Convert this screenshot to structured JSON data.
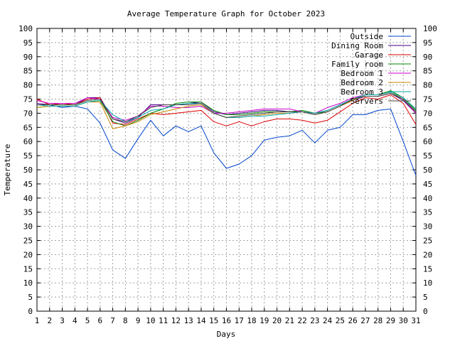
{
  "chart_data": {
    "type": "line",
    "title": "Average Temperature Graph for October 2023",
    "xlabel": "Days",
    "ylabel": "Temperature",
    "xlim": [
      1,
      31
    ],
    "ylim": [
      0,
      100
    ],
    "x_ticks": [
      1,
      2,
      3,
      4,
      5,
      6,
      7,
      8,
      9,
      10,
      11,
      12,
      13,
      14,
      15,
      16,
      17,
      18,
      19,
      20,
      21,
      22,
      23,
      24,
      25,
      26,
      27,
      28,
      29,
      30,
      31
    ],
    "y_ticks": [
      0,
      5,
      10,
      15,
      20,
      25,
      30,
      35,
      40,
      45,
      50,
      55,
      60,
      65,
      70,
      75,
      80,
      85,
      90,
      95,
      100
    ],
    "grid": true,
    "legend_position": "top-right",
    "x": [
      1,
      2,
      3,
      4,
      5,
      6,
      7,
      8,
      9,
      10,
      11,
      12,
      13,
      14,
      15,
      16,
      17,
      18,
      19,
      20,
      21,
      22,
      23,
      24,
      25,
      26,
      27,
      28,
      29,
      30,
      31
    ],
    "series": [
      {
        "name": "Outside",
        "color": "#0044cc",
        "values": [
          73.0,
          73.0,
          72.0,
          72.5,
          71.5,
          66.5,
          57.0,
          54.0,
          61.0,
          67.5,
          62.0,
          65.5,
          63.5,
          65.5,
          56.0,
          50.5,
          52.0,
          55.0,
          60.5,
          61.5,
          62.0,
          64.0,
          59.5,
          64.0,
          65.0,
          69.5,
          69.5,
          71.0,
          71.5,
          60.0,
          48.0
        ]
      },
      {
        "name": "Dining Room",
        "color": "#440088",
        "values": [
          73.5,
          73.0,
          73.0,
          73.0,
          75.5,
          75.5,
          68.0,
          66.5,
          68.5,
          73.0,
          73.0,
          73.0,
          73.5,
          74.0,
          70.5,
          69.5,
          70.0,
          70.5,
          71.0,
          71.0,
          70.5,
          70.5,
          70.0,
          71.0,
          73.0,
          74.5,
          76.0,
          76.0,
          77.0,
          74.5,
          70.0
        ]
      },
      {
        "name": "Garage",
        "color": "#dd0000",
        "values": [
          75.0,
          73.0,
          73.5,
          73.0,
          75.0,
          75.5,
          66.5,
          66.0,
          68.0,
          70.0,
          69.5,
          70.0,
          70.5,
          71.0,
          67.0,
          65.5,
          67.0,
          65.5,
          67.0,
          68.0,
          68.0,
          67.5,
          66.5,
          67.5,
          70.5,
          73.5,
          75.5,
          75.0,
          76.5,
          73.5,
          66.0
        ]
      },
      {
        "name": "Family room",
        "color": "#008800",
        "values": [
          72.0,
          72.5,
          72.5,
          72.5,
          74.0,
          74.5,
          67.0,
          65.5,
          67.5,
          70.0,
          71.5,
          73.5,
          74.0,
          74.0,
          71.0,
          69.5,
          69.5,
          70.0,
          70.5,
          70.5,
          70.5,
          71.0,
          70.0,
          70.5,
          72.5,
          75.0,
          76.5,
          76.5,
          78.0,
          75.5,
          71.0
        ]
      },
      {
        "name": "Bedroom 1",
        "color": "#cc00cc",
        "values": [
          74.5,
          73.5,
          73.5,
          73.5,
          75.5,
          75.0,
          68.5,
          67.5,
          69.0,
          72.5,
          72.5,
          72.0,
          72.0,
          72.5,
          70.0,
          70.0,
          70.5,
          71.0,
          71.5,
          71.5,
          71.5,
          70.5,
          70.0,
          72.0,
          73.5,
          75.5,
          76.5,
          76.5,
          77.5,
          75.0,
          70.0
        ]
      },
      {
        "name": "Bedroom 2",
        "color": "#cc8800",
        "values": [
          72.0,
          72.5,
          72.5,
          72.5,
          74.0,
          74.0,
          64.5,
          65.5,
          67.0,
          69.5,
          70.5,
          71.5,
          72.5,
          73.0,
          70.0,
          68.5,
          68.5,
          69.0,
          69.5,
          70.0,
          70.0,
          70.5,
          69.5,
          70.5,
          72.5,
          74.5,
          76.5,
          76.5,
          77.5,
          75.0,
          70.5
        ]
      },
      {
        "name": "Bedroom 3",
        "color": "#00aaaa",
        "values": [
          73.0,
          72.5,
          72.5,
          72.5,
          74.0,
          74.5,
          69.5,
          67.0,
          68.5,
          71.0,
          71.5,
          73.0,
          73.5,
          73.5,
          70.0,
          68.5,
          68.5,
          69.0,
          69.0,
          69.5,
          70.0,
          70.5,
          70.0,
          71.0,
          73.0,
          75.0,
          76.5,
          76.5,
          77.5,
          75.5,
          71.5
        ]
      },
      {
        "name": "Servers",
        "color": "#444444",
        "values": [
          73.0,
          73.0,
          73.0,
          73.0,
          74.5,
          75.0,
          68.0,
          67.0,
          69.0,
          72.0,
          73.0,
          73.0,
          73.0,
          73.5,
          70.0,
          68.5,
          69.0,
          69.5,
          70.0,
          70.5,
          70.5,
          70.5,
          69.5,
          70.5,
          72.5,
          75.0,
          76.0,
          76.0,
          77.0,
          75.0,
          70.5
        ]
      }
    ]
  }
}
